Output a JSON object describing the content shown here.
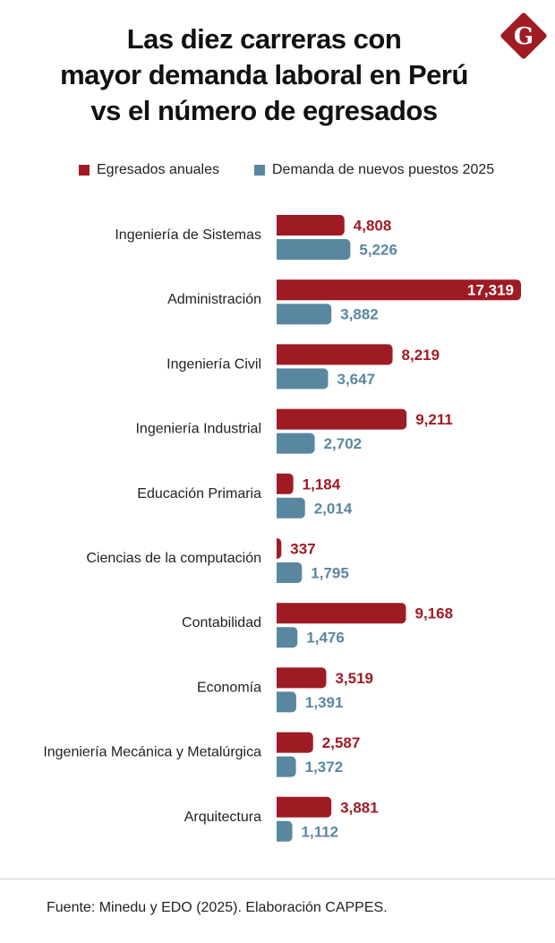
{
  "title_lines": [
    "Las diez carreras con",
    "mayor demanda laboral en Perú",
    "vs el número de egresados"
  ],
  "logo_letter": "G",
  "source": "Fuente: Minedu y EDO (2025). Elaboración CAPPES.",
  "colors": {
    "egresados": "#9e1b24",
    "demanda": "#5a87a0"
  },
  "chart_data": {
    "type": "bar",
    "orientation": "horizontal",
    "title": "Las diez carreras con mayor demanda laboral en Perú vs el número de egresados",
    "categories": [
      "Ingeniería de Sistemas",
      "Administración",
      "Ingeniería Civil",
      "Ingeniería Industrial",
      "Educación Primaria",
      "Ciencias de la computación",
      "Contabilidad",
      "Economía",
      "Ingeniería Mecánica y Metalúrgica",
      "Arquitectura"
    ],
    "series": [
      {
        "name": "Egresados anuales",
        "values": [
          4808,
          17319,
          8219,
          9211,
          1184,
          337,
          9168,
          3519,
          2587,
          3881
        ],
        "labels": [
          "4,808",
          "17,319",
          "8,219",
          "9,211",
          "1,184",
          "337",
          "9,168",
          "3,519",
          "2,587",
          "3,881"
        ]
      },
      {
        "name": "Demanda de nuevos puestos 2025",
        "values": [
          5226,
          3882,
          3647,
          2702,
          2014,
          1795,
          1476,
          1391,
          1372,
          1112
        ],
        "labels": [
          "5,226",
          "3,882",
          "3,647",
          "2,702",
          "2,014",
          "1,795",
          "1,476",
          "1,391",
          "1,372",
          "1,112"
        ]
      }
    ],
    "legend": "top",
    "xlim": [
      0,
      17319
    ],
    "grid": false
  }
}
